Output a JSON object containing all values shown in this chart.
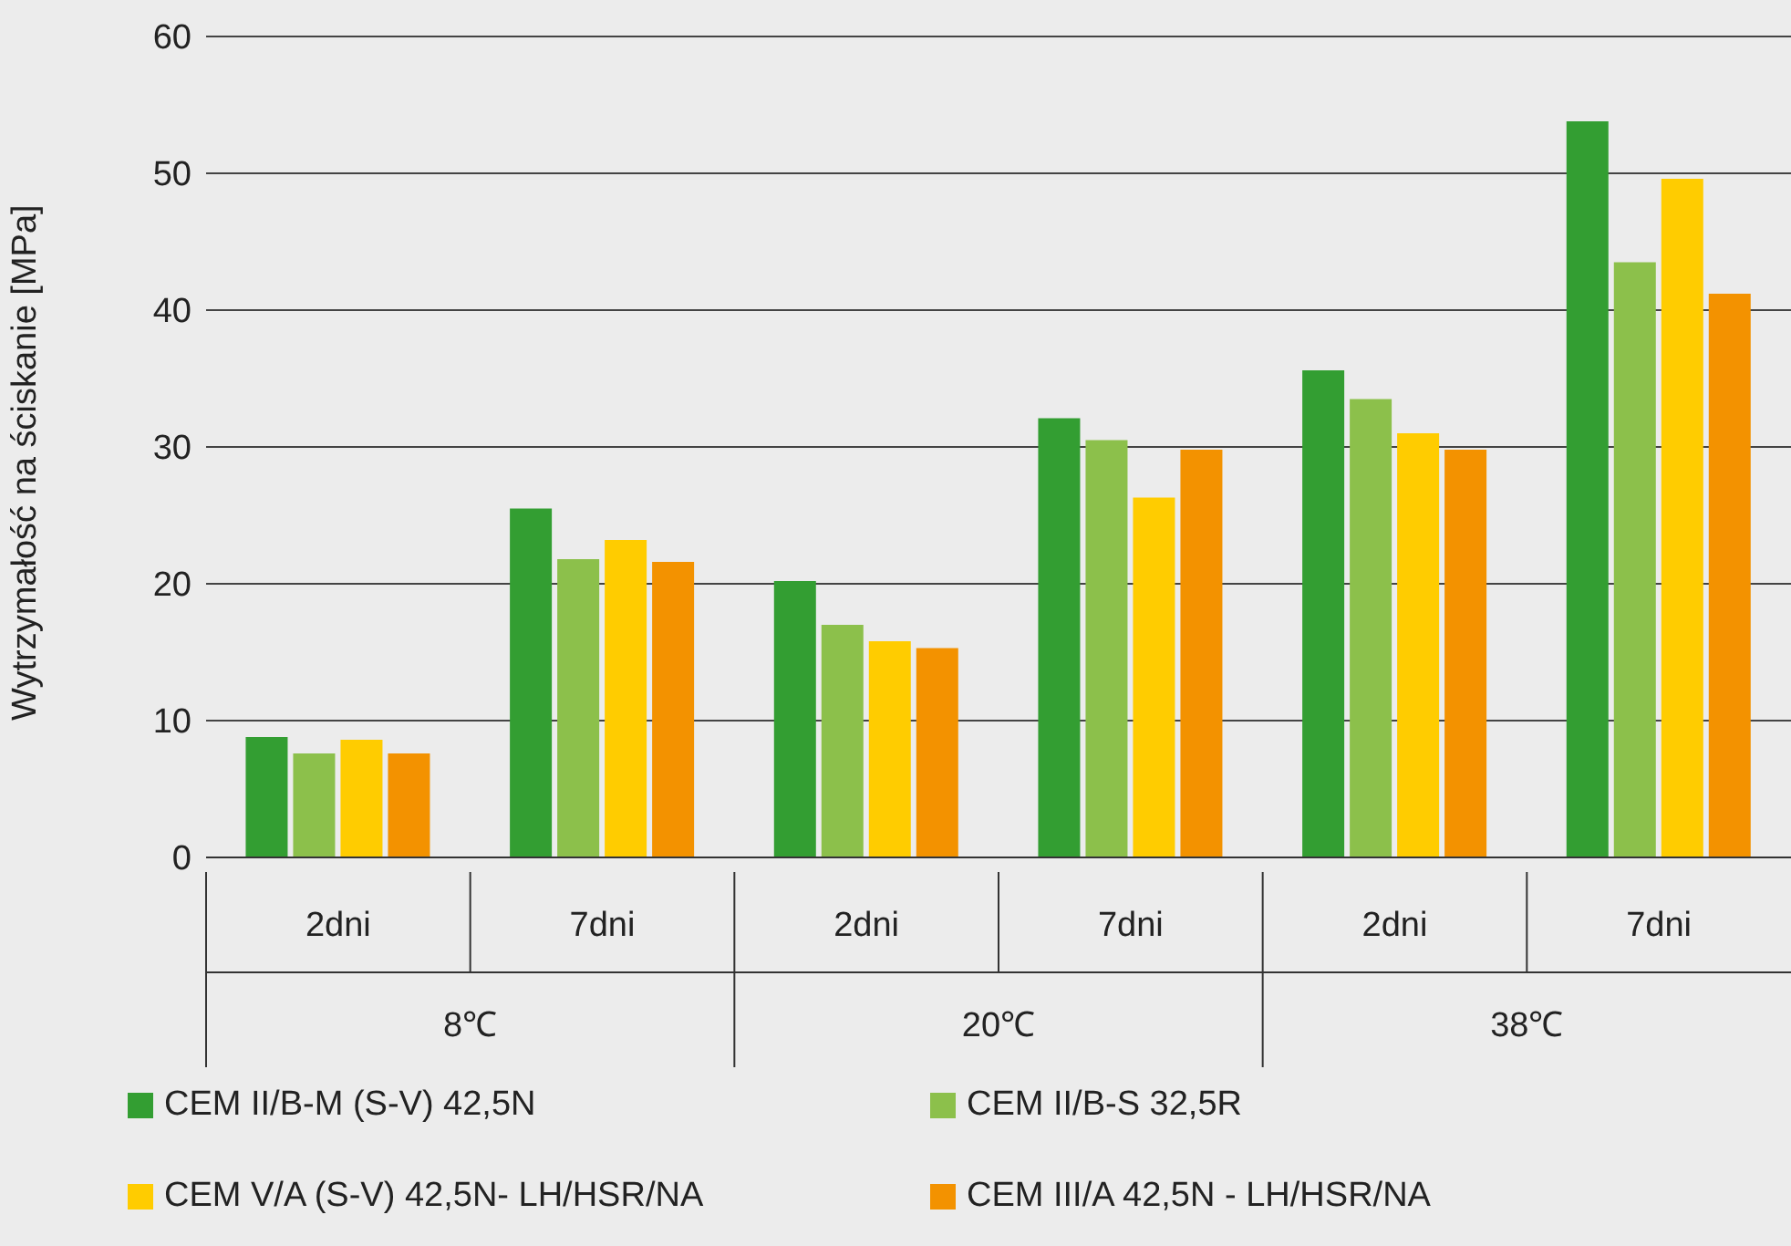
{
  "chart_data": {
    "type": "bar",
    "ylabel": "Wytrzymałość na ściskanie  [MPa]",
    "categories": [
      "2dni",
      "7dni",
      "2dni",
      "7dni",
      "2dni",
      "7dni"
    ],
    "annotations": [
      "8℃",
      "20℃",
      "38℃"
    ],
    "series": [
      {
        "name": "CEM II/B-M (S-V) 42,5N",
        "color": "#339e32",
        "values": [
          8.8,
          25.5,
          20.2,
          32.1,
          35.6,
          53.8
        ]
      },
      {
        "name": "CEM II/B-S 32,5R",
        "color": "#8cc04b",
        "values": [
          7.6,
          21.8,
          17.0,
          30.5,
          33.5,
          43.5
        ]
      },
      {
        "name": "CEM V/A (S-V) 42,5N- LH/HSR/NA",
        "color": "#ffcc00",
        "values": [
          8.6,
          23.2,
          15.8,
          26.3,
          31.0,
          49.6
        ]
      },
      {
        "name": "CEM III/A 42,5N - LH/HSR/NA",
        "color": "#f39200",
        "values": [
          7.6,
          21.6,
          15.3,
          29.8,
          29.8,
          41.2
        ]
      }
    ],
    "ylim": [
      0,
      60
    ],
    "yticks": [
      0,
      10,
      20,
      30,
      40,
      50,
      60
    ],
    "grid": "y",
    "legend": "bottom"
  }
}
